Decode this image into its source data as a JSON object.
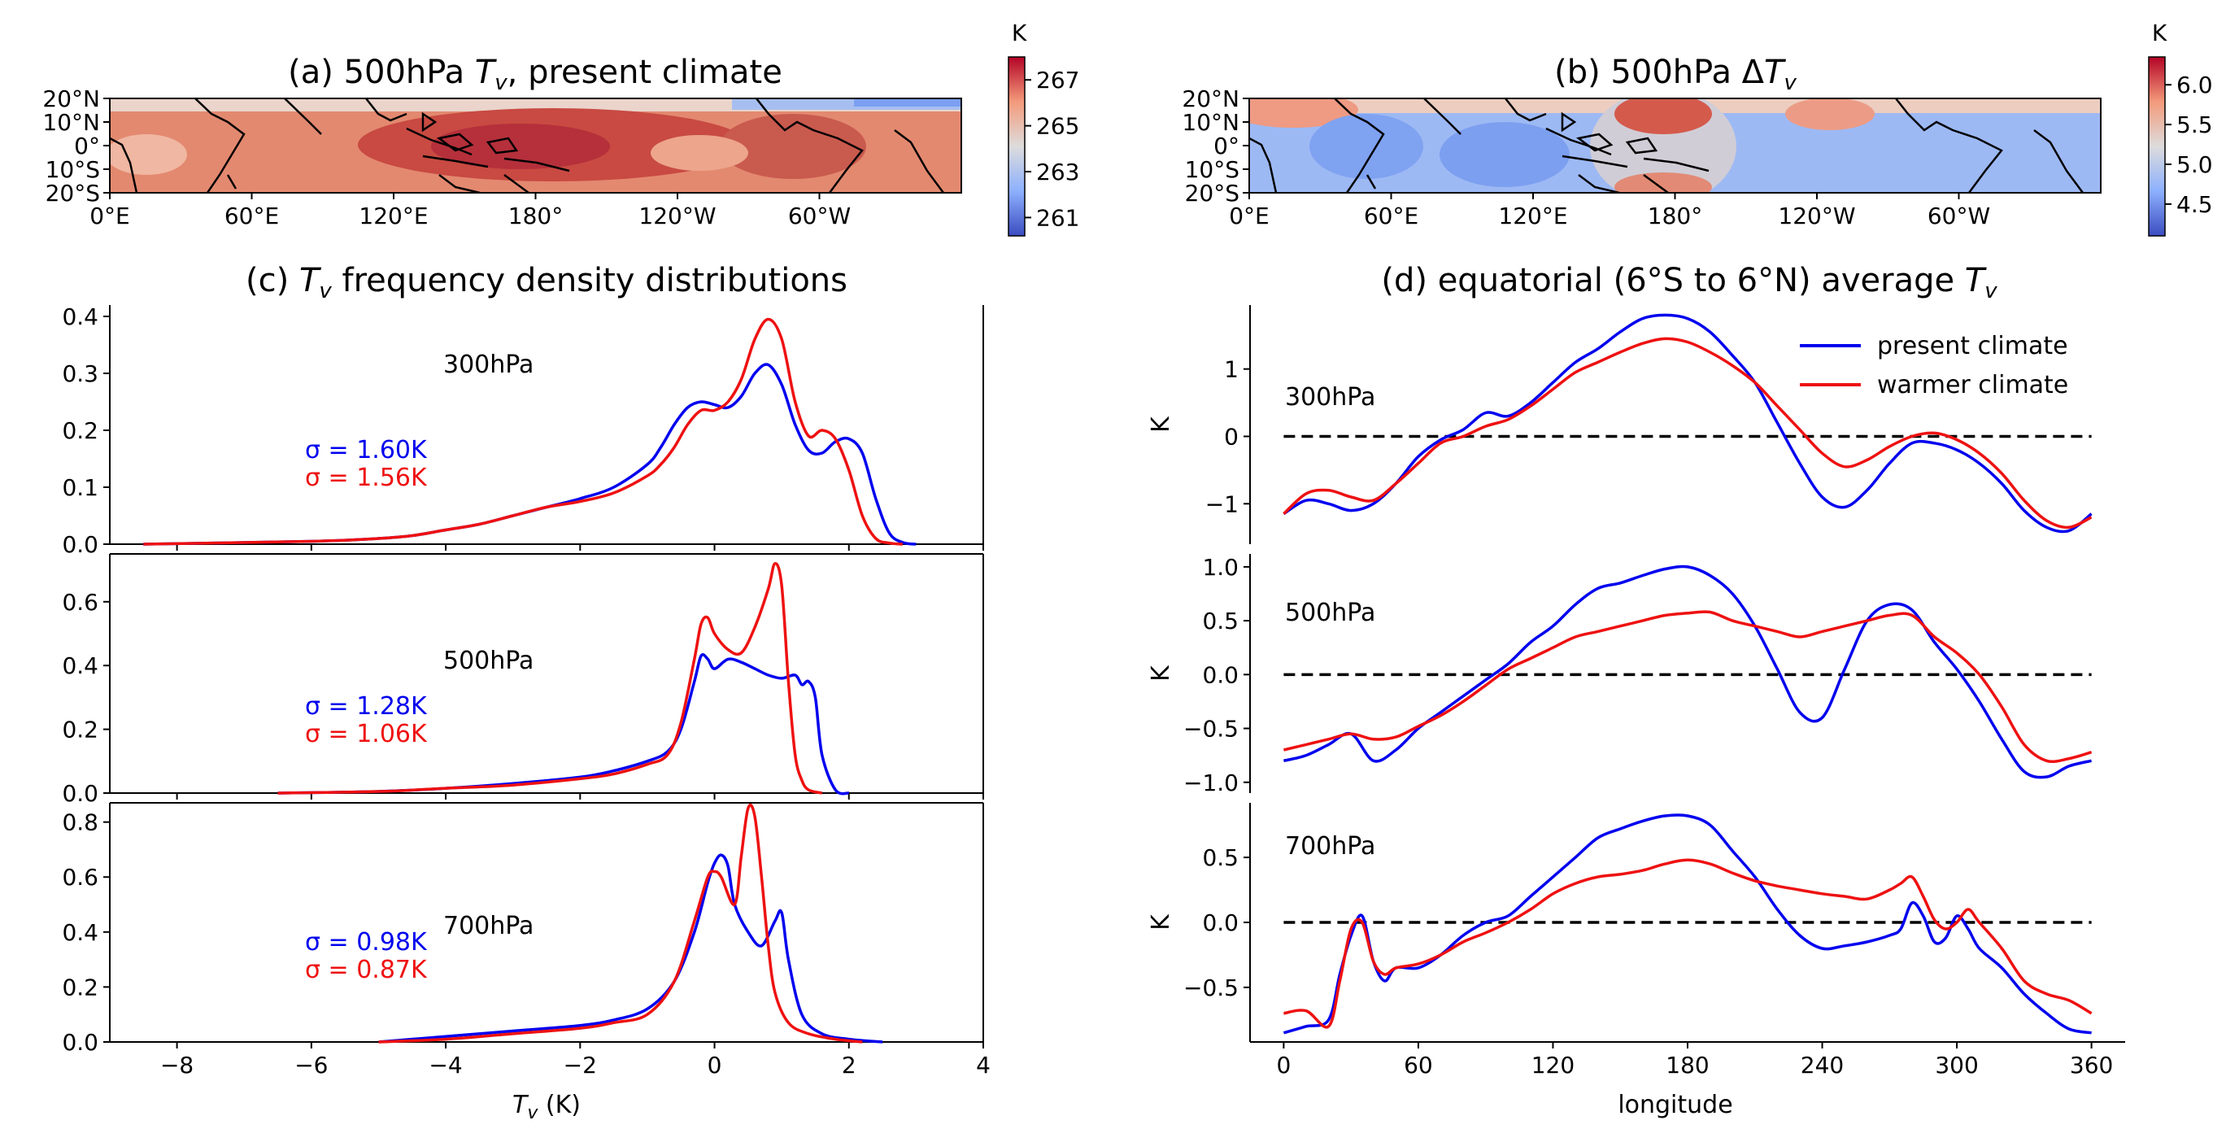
{
  "figure": {
    "panel_a": {
      "title": "(a) 500hPa T_v, present climate",
      "colorbar_unit": "K",
      "colorbar_ticks": [
        "267",
        "265",
        "263",
        "261"
      ],
      "colorbar_range": [
        260.2,
        268.0
      ],
      "colormap": "coolwarm",
      "lat_ticks": [
        "20°N",
        "10°N",
        "0°",
        "10°S",
        "20°S"
      ],
      "lon_ticks": [
        "0°E",
        "60°E",
        "120°E",
        "180°",
        "120°W",
        "60°W"
      ]
    },
    "panel_b": {
      "title": "(b) 500hPa ΔT_v",
      "colorbar_unit": "K",
      "colorbar_ticks": [
        "6.0",
        "5.5",
        "5.0",
        "4.5"
      ],
      "colorbar_range": [
        4.1,
        6.35
      ],
      "colormap": "coolwarm",
      "lat_ticks": [
        "20°N",
        "10°N",
        "0°",
        "10°S",
        "20°S"
      ],
      "lon_ticks": [
        "0°E",
        "60°E",
        "120°E",
        "180°",
        "120°W",
        "60°W"
      ]
    },
    "panel_c_title": "(c) T_v frequency density distributions",
    "panel_d_title": "(d) equatorial (6°S to 6°N) average T_v",
    "colors": {
      "present": "#0000ee",
      "warmer": "#ee1111",
      "zero_line": "#000000"
    }
  },
  "chart_data": [
    {
      "id": "c-300",
      "type": "line",
      "level_label": "300hPa",
      "xlim": [
        -9,
        4
      ],
      "ylim": [
        0,
        0.42
      ],
      "yticks": [
        0.0,
        0.1,
        0.2,
        0.3,
        0.4
      ],
      "ytick_labels": [
        "0.0",
        "0.1",
        "0.2",
        "0.3",
        "0.4"
      ],
      "sigma_present": "σ = 1.60K",
      "sigma_warmer": "σ = 1.56K",
      "series": [
        {
          "key": "present",
          "x": [
            -8.5,
            -6,
            -5,
            -4.5,
            -4,
            -3.5,
            -3,
            -2.5,
            -2,
            -1.5,
            -1,
            -0.8,
            -0.6,
            -0.4,
            -0.2,
            0,
            0.2,
            0.4,
            0.6,
            0.8,
            1.0,
            1.2,
            1.4,
            1.6,
            1.8,
            2.0,
            2.2,
            2.4,
            2.6,
            2.8,
            3.0
          ],
          "y": [
            0,
            0.005,
            0.01,
            0.015,
            0.025,
            0.035,
            0.05,
            0.065,
            0.08,
            0.1,
            0.14,
            0.17,
            0.21,
            0.24,
            0.25,
            0.245,
            0.24,
            0.26,
            0.3,
            0.315,
            0.28,
            0.21,
            0.165,
            0.16,
            0.18,
            0.185,
            0.16,
            0.08,
            0.02,
            0.003,
            0
          ]
        },
        {
          "key": "warmer",
          "x": [
            -8.5,
            -6,
            -5,
            -4.5,
            -4,
            -3.5,
            -3,
            -2.5,
            -2,
            -1.5,
            -1,
            -0.8,
            -0.6,
            -0.4,
            -0.2,
            0,
            0.2,
            0.4,
            0.6,
            0.8,
            1.0,
            1.2,
            1.4,
            1.6,
            1.8,
            2.0,
            2.2,
            2.4,
            2.6,
            2.8
          ],
          "y": [
            0,
            0.005,
            0.01,
            0.015,
            0.025,
            0.035,
            0.05,
            0.065,
            0.075,
            0.09,
            0.12,
            0.14,
            0.17,
            0.21,
            0.235,
            0.235,
            0.25,
            0.29,
            0.36,
            0.395,
            0.36,
            0.25,
            0.19,
            0.2,
            0.185,
            0.13,
            0.05,
            0.01,
            0.002,
            0
          ]
        }
      ]
    },
    {
      "id": "c-500",
      "type": "line",
      "level_label": "500hPa",
      "xlim": [
        -9,
        4
      ],
      "ylim": [
        0,
        0.75
      ],
      "yticks": [
        0.0,
        0.2,
        0.4,
        0.6
      ],
      "ytick_labels": [
        "0.0",
        "0.2",
        "0.4",
        "0.6"
      ],
      "sigma_present": "σ = 1.28K",
      "sigma_warmer": "σ = 1.06K",
      "series": [
        {
          "key": "present",
          "x": [
            -6.5,
            -5,
            -4,
            -3,
            -2,
            -1.5,
            -1,
            -0.7,
            -0.5,
            -0.3,
            -0.2,
            -0.1,
            0,
            0.2,
            0.4,
            0.6,
            0.8,
            1.0,
            1.2,
            1.3,
            1.4,
            1.5,
            1.6,
            1.8,
            2.0
          ],
          "y": [
            0,
            0.005,
            0.015,
            0.03,
            0.05,
            0.07,
            0.1,
            0.13,
            0.2,
            0.35,
            0.43,
            0.42,
            0.39,
            0.42,
            0.41,
            0.39,
            0.37,
            0.36,
            0.37,
            0.34,
            0.35,
            0.3,
            0.12,
            0.01,
            0
          ]
        },
        {
          "key": "warmer",
          "x": [
            -6.5,
            -5,
            -4,
            -3,
            -2,
            -1.5,
            -1,
            -0.7,
            -0.5,
            -0.3,
            -0.2,
            -0.1,
            0,
            0.2,
            0.4,
            0.6,
            0.8,
            0.9,
            1.0,
            1.1,
            1.2,
            1.3,
            1.4,
            1.6
          ],
          "y": [
            0,
            0.005,
            0.015,
            0.025,
            0.045,
            0.06,
            0.09,
            0.12,
            0.22,
            0.42,
            0.53,
            0.55,
            0.5,
            0.45,
            0.44,
            0.52,
            0.64,
            0.72,
            0.65,
            0.35,
            0.12,
            0.04,
            0.01,
            0
          ]
        }
      ]
    },
    {
      "id": "c-700",
      "type": "line",
      "level_label": "700hPa",
      "xlim": [
        -9,
        4
      ],
      "ylim": [
        0,
        0.87
      ],
      "yticks": [
        0.0,
        0.2,
        0.4,
        0.6,
        0.8
      ],
      "ytick_labels": [
        "0.0",
        "0.2",
        "0.4",
        "0.6",
        "0.8"
      ],
      "sigma_present": "σ = 0.98K",
      "sigma_warmer": "σ = 0.87K",
      "series": [
        {
          "key": "present",
          "x": [
            -5,
            -4,
            -3,
            -2,
            -1.5,
            -1,
            -0.6,
            -0.3,
            -0.1,
            0,
            0.1,
            0.2,
            0.3,
            0.5,
            0.7,
            0.9,
            1.0,
            1.1,
            1.3,
            1.6,
            2.0,
            2.5
          ],
          "y": [
            0,
            0.02,
            0.04,
            0.06,
            0.08,
            0.12,
            0.22,
            0.4,
            0.58,
            0.65,
            0.68,
            0.64,
            0.5,
            0.4,
            0.35,
            0.44,
            0.47,
            0.3,
            0.1,
            0.03,
            0.01,
            0
          ]
        },
        {
          "key": "warmer",
          "x": [
            -5,
            -4,
            -3,
            -2,
            -1.5,
            -1,
            -0.6,
            -0.3,
            -0.1,
            0,
            0.1,
            0.3,
            0.4,
            0.5,
            0.6,
            0.7,
            0.8,
            0.9,
            1.1,
            1.4,
            1.8,
            2.2
          ],
          "y": [
            0,
            0.01,
            0.03,
            0.05,
            0.07,
            0.1,
            0.22,
            0.44,
            0.6,
            0.62,
            0.6,
            0.5,
            0.68,
            0.85,
            0.82,
            0.6,
            0.35,
            0.18,
            0.07,
            0.03,
            0.01,
            0
          ]
        }
      ]
    },
    {
      "id": "d-300",
      "type": "line",
      "level_label": "300hPa",
      "xlim": [
        -15,
        375
      ],
      "ylim": [
        -1.6,
        1.95
      ],
      "yticks": [
        -1,
        0,
        1
      ],
      "ytick_labels": [
        "−1",
        "0",
        "1"
      ],
      "ylabel": "K",
      "zero_line": true,
      "legend": {
        "position": "top-right",
        "entries": [
          "present climate",
          "warmer climate"
        ]
      },
      "series": [
        {
          "key": "present",
          "x": [
            0,
            10,
            20,
            30,
            40,
            50,
            60,
            70,
            80,
            90,
            100,
            110,
            120,
            130,
            140,
            150,
            160,
            170,
            180,
            190,
            200,
            210,
            220,
            230,
            240,
            250,
            260,
            270,
            280,
            290,
            300,
            310,
            320,
            330,
            340,
            350,
            360
          ],
          "y": [
            -1.15,
            -0.95,
            -1.0,
            -1.1,
            -1.0,
            -0.7,
            -0.3,
            -0.05,
            0.1,
            0.35,
            0.3,
            0.5,
            0.8,
            1.1,
            1.3,
            1.55,
            1.75,
            1.8,
            1.75,
            1.55,
            1.2,
            0.8,
            0.2,
            -0.4,
            -0.9,
            -1.05,
            -0.8,
            -0.4,
            -0.1,
            -0.1,
            -0.2,
            -0.4,
            -0.7,
            -1.1,
            -1.35,
            -1.4,
            -1.15
          ]
        },
        {
          "key": "warmer",
          "x": [
            0,
            10,
            20,
            30,
            40,
            50,
            60,
            70,
            80,
            90,
            100,
            110,
            120,
            130,
            140,
            150,
            160,
            170,
            180,
            190,
            200,
            210,
            220,
            230,
            240,
            250,
            260,
            270,
            280,
            290,
            300,
            310,
            320,
            330,
            340,
            350,
            360
          ],
          "y": [
            -1.15,
            -0.85,
            -0.8,
            -0.9,
            -0.95,
            -0.7,
            -0.4,
            -0.1,
            0.0,
            0.15,
            0.25,
            0.45,
            0.7,
            0.95,
            1.1,
            1.25,
            1.38,
            1.45,
            1.4,
            1.25,
            1.05,
            0.8,
            0.45,
            0.1,
            -0.25,
            -0.45,
            -0.35,
            -0.15,
            0.0,
            0.05,
            -0.05,
            -0.25,
            -0.55,
            -0.95,
            -1.25,
            -1.35,
            -1.2
          ]
        }
      ]
    },
    {
      "id": "d-500",
      "type": "line",
      "level_label": "500hPa",
      "xlim": [
        -15,
        375
      ],
      "ylim": [
        -1.1,
        1.12
      ],
      "yticks": [
        -1.0,
        -0.5,
        0.0,
        0.5,
        1.0
      ],
      "ytick_labels": [
        "−1.0",
        "−0.5",
        "0.0",
        "0.5",
        "1.0"
      ],
      "ylabel": "K",
      "zero_line": true,
      "series": [
        {
          "key": "present",
          "x": [
            0,
            10,
            20,
            30,
            40,
            50,
            60,
            70,
            80,
            90,
            100,
            110,
            120,
            130,
            140,
            150,
            160,
            170,
            180,
            190,
            200,
            210,
            220,
            230,
            240,
            250,
            260,
            270,
            280,
            290,
            300,
            310,
            320,
            330,
            340,
            350,
            360
          ],
          "y": [
            -0.8,
            -0.75,
            -0.65,
            -0.55,
            -0.8,
            -0.7,
            -0.5,
            -0.35,
            -0.2,
            -0.05,
            0.1,
            0.3,
            0.45,
            0.65,
            0.8,
            0.85,
            0.92,
            0.98,
            1.0,
            0.92,
            0.75,
            0.45,
            0.05,
            -0.35,
            -0.4,
            0.05,
            0.5,
            0.65,
            0.6,
            0.3,
            0.05,
            -0.25,
            -0.6,
            -0.9,
            -0.95,
            -0.85,
            -0.8
          ]
        },
        {
          "key": "warmer",
          "x": [
            0,
            10,
            20,
            30,
            40,
            50,
            60,
            70,
            80,
            90,
            100,
            110,
            120,
            130,
            140,
            150,
            160,
            170,
            180,
            190,
            200,
            210,
            220,
            230,
            240,
            250,
            260,
            270,
            280,
            290,
            300,
            310,
            320,
            330,
            340,
            350,
            360
          ],
          "y": [
            -0.7,
            -0.65,
            -0.6,
            -0.55,
            -0.6,
            -0.58,
            -0.48,
            -0.38,
            -0.25,
            -0.1,
            0.05,
            0.15,
            0.25,
            0.35,
            0.4,
            0.45,
            0.5,
            0.55,
            0.57,
            0.58,
            0.5,
            0.45,
            0.4,
            0.35,
            0.4,
            0.45,
            0.5,
            0.55,
            0.55,
            0.35,
            0.2,
            0.0,
            -0.3,
            -0.65,
            -0.8,
            -0.78,
            -0.72
          ]
        }
      ]
    },
    {
      "id": "d-700",
      "type": "line",
      "level_label": "700hPa",
      "xlim": [
        -15,
        375
      ],
      "ylim": [
        -0.92,
        0.92
      ],
      "yticks": [
        -0.5,
        0.0,
        0.5
      ],
      "ytick_labels": [
        "−0.5",
        "0.0",
        "0.5"
      ],
      "ylabel": "K",
      "zero_line": true,
      "xlabel": "longitude",
      "xticks": [
        0,
        60,
        120,
        180,
        240,
        300,
        360
      ],
      "xtick_labels": [
        "0",
        "60",
        "120",
        "180",
        "240",
        "300",
        "360"
      ],
      "series": [
        {
          "key": "present",
          "x": [
            0,
            10,
            20,
            25,
            30,
            35,
            40,
            45,
            50,
            60,
            70,
            80,
            90,
            100,
            110,
            120,
            130,
            140,
            150,
            160,
            170,
            180,
            190,
            200,
            210,
            220,
            230,
            240,
            250,
            260,
            270,
            275,
            280,
            285,
            290,
            295,
            300,
            305,
            310,
            320,
            330,
            340,
            350,
            360
          ],
          "y": [
            -0.85,
            -0.8,
            -0.75,
            -0.4,
            -0.1,
            0.05,
            -0.3,
            -0.45,
            -0.35,
            -0.35,
            -0.25,
            -0.1,
            0.0,
            0.05,
            0.2,
            0.35,
            0.5,
            0.65,
            0.72,
            0.78,
            0.82,
            0.82,
            0.75,
            0.55,
            0.35,
            0.1,
            -0.1,
            -0.2,
            -0.18,
            -0.15,
            -0.1,
            -0.05,
            0.15,
            0.05,
            -0.15,
            -0.12,
            0.05,
            -0.05,
            -0.2,
            -0.35,
            -0.55,
            -0.7,
            -0.82,
            -0.85
          ]
        },
        {
          "key": "warmer",
          "x": [
            0,
            10,
            20,
            25,
            30,
            35,
            40,
            45,
            50,
            60,
            70,
            80,
            90,
            100,
            110,
            120,
            130,
            140,
            150,
            160,
            170,
            180,
            190,
            200,
            210,
            220,
            230,
            240,
            250,
            260,
            270,
            275,
            280,
            285,
            290,
            295,
            300,
            305,
            310,
            320,
            330,
            340,
            350,
            360
          ],
          "y": [
            -0.7,
            -0.68,
            -0.8,
            -0.45,
            -0.05,
            0.0,
            -0.3,
            -0.4,
            -0.35,
            -0.32,
            -0.25,
            -0.15,
            -0.08,
            0.0,
            0.1,
            0.22,
            0.3,
            0.35,
            0.37,
            0.4,
            0.45,
            0.48,
            0.45,
            0.38,
            0.32,
            0.28,
            0.25,
            0.22,
            0.2,
            0.18,
            0.25,
            0.3,
            0.35,
            0.2,
            0.02,
            -0.05,
            0.0,
            0.1,
            0.0,
            -0.2,
            -0.45,
            -0.55,
            -0.6,
            -0.7
          ]
        }
      ]
    }
  ]
}
